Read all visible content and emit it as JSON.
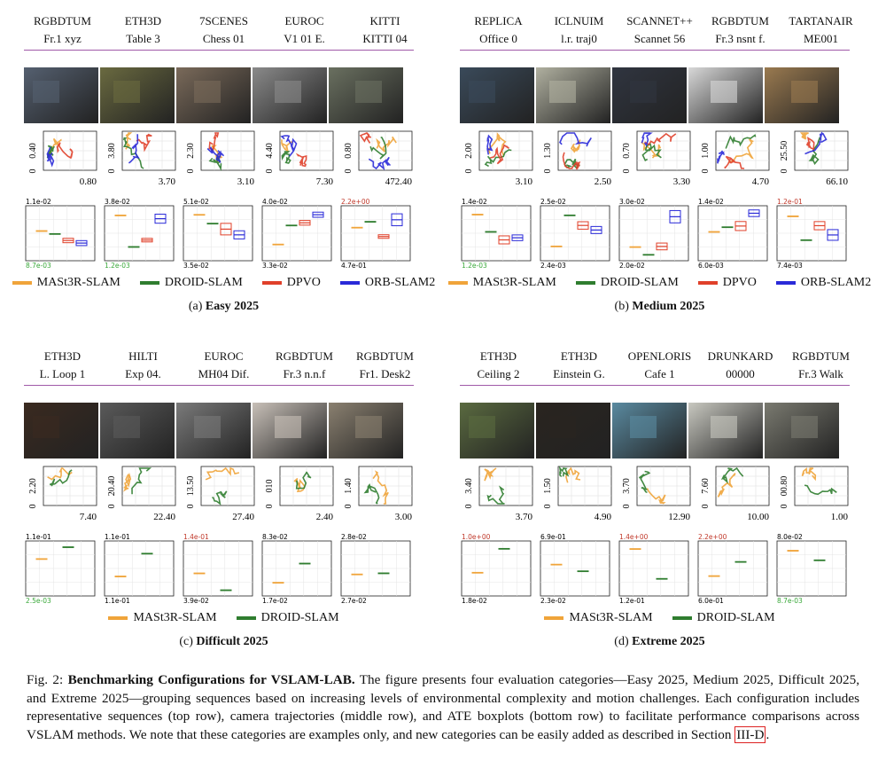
{
  "panels": [
    {
      "id": "a",
      "datasets": [
        "RGBDTUM",
        "ETH3D",
        "7SCENES",
        "EUROC",
        "KITTI"
      ],
      "sequences": [
        "Fr.1 xyz",
        "Table 3",
        "Chess 01",
        "V1 01 E.",
        "KITTI 04"
      ],
      "ymax": [
        "0.40",
        "3.80",
        "2.30",
        "4.40",
        "0.80"
      ],
      "xmax": [
        "0.80",
        "3.70",
        "3.10",
        "7.30",
        "472.40"
      ],
      "box_top": [
        "1.1e-02",
        "3.8e-02",
        "5.1e-02",
        "4.0e-02",
        "2.2e+00"
      ],
      "box_bottom": [
        "8.7e-03",
        "1.2e-03",
        "3.5e-02",
        "3.3e-02",
        "4.7e-01"
      ],
      "legend": [
        "MASt3R-SLAM",
        "DROID-SLAM",
        "DPVO",
        "ORB-SLAM2"
      ],
      "label_prefix": "(a)",
      "label_title": "Easy 2025",
      "thumb_colors": [
        "#556070",
        "#6a6a40",
        "#7a6a5a",
        "#8a8a8a",
        "#6a7060"
      ]
    },
    {
      "id": "b",
      "datasets": [
        "REPLICA",
        "ICLNUIM",
        "SCANNET++",
        "RGBDTUM",
        "TARTANAIR"
      ],
      "sequences": [
        "Office 0",
        "l.r. traj0",
        "Scannet 56",
        "Fr.3 nsnt f.",
        "ME001"
      ],
      "ymax": [
        "2.00",
        "1.30",
        "0.70",
        "1.00",
        "25.50"
      ],
      "xmax": [
        "3.10",
        "2.50",
        "3.30",
        "4.70",
        "66.10"
      ],
      "box_top": [
        "1.4e-02",
        "2.5e-02",
        "3.0e-02",
        "1.4e-02",
        "1.2e-01"
      ],
      "box_bottom": [
        "1.2e-03",
        "2.4e-03",
        "2.0e-02",
        "6.0e-03",
        "7.4e-03"
      ],
      "legend": [
        "MASt3R-SLAM",
        "DROID-SLAM",
        "DPVO",
        "ORB-SLAM2"
      ],
      "label_prefix": "(b)",
      "label_title": "Medium 2025",
      "thumb_colors": [
        "#3a4a5a",
        "#b0b0a0",
        "#303540",
        "#d8d8d8",
        "#9a7a50"
      ]
    },
    {
      "id": "c",
      "datasets": [
        "ETH3D",
        "HILTI",
        "EUROC",
        "RGBDTUM",
        "RGBDTUM"
      ],
      "sequences": [
        "L. Loop 1",
        "Exp 04.",
        "MH04 Dif.",
        "Fr.3 n.n.f",
        "Fr1. Desk2"
      ],
      "ymax": [
        "2.20",
        "20.40",
        "13.50",
        "010",
        "1.40"
      ],
      "xmax": [
        "7.40",
        "22.40",
        "27.40",
        "2.40",
        "3.00"
      ],
      "box_top": [
        "1.1e-01",
        "1.1e-01",
        "1.4e-01",
        "8.3e-02",
        "2.8e-02"
      ],
      "box_bottom": [
        "2.5e-03",
        "1.1e-01",
        "3.9e-02",
        "1.7e-02",
        "2.7e-02"
      ],
      "legend": [
        "MASt3R-SLAM",
        "DROID-SLAM"
      ],
      "label_prefix": "(c)",
      "label_title": "Difficult 2025",
      "thumb_colors": [
        "#3a2a20",
        "#5a5a5a",
        "#7a7a7a",
        "#c8c0b8",
        "#8a8070"
      ]
    },
    {
      "id": "d",
      "datasets": [
        "ETH3D",
        "ETH3D",
        "OPENLORIS",
        "DRUNKARD",
        "RGBDTUM"
      ],
      "sequences": [
        "Ceiling 2",
        "Einstein G.",
        "Cafe 1",
        "00000",
        "Fr.3 Walk"
      ],
      "ymax": [
        "3.40",
        "1.50",
        "3.70",
        "7.60",
        "00.80"
      ],
      "xmax": [
        "3.70",
        "4.90",
        "12.90",
        "10.00",
        "1.00"
      ],
      "box_top": [
        "1.0e+00",
        "6.9e-01",
        "1.4e+00",
        "2.2e+00",
        "8.0e-02"
      ],
      "box_bottom": [
        "1.8e-02",
        "2.3e-02",
        "1.2e-01",
        "6.0e-01",
        "8.7e-03"
      ],
      "legend": [
        "MASt3R-SLAM",
        "DROID-SLAM"
      ],
      "label_prefix": "(d)",
      "label_title": "Extreme 2025",
      "thumb_colors": [
        "#5a6a40",
        "#2a2520",
        "#5a8aa0",
        "#c8c8c0",
        "#7a7a70"
      ]
    }
  ],
  "colors": {
    "mast3r": "#f0a43a",
    "droid": "#2f7d2f",
    "dpvo": "#e0402a",
    "orb": "#2a2ad8",
    "rule": "#a05aa8",
    "red_label": "#c0392b",
    "green_label": "#3aa83a"
  },
  "caption": {
    "prefix": "Fig. 2: ",
    "title": "Benchmarking Configurations for VSLAM-LAB.",
    "body": " The figure presents four evaluation categories—Easy 2025, Medium 2025, Difficult 2025, and Extreme 2025—grouping sequences based on increasing levels of environmental complexity and motion challenges. Each configuration includes representative sequences (top row), camera trajectories (middle row), and ATE boxplots (bottom row) to facilitate performance comparisons across VSLAM methods. We note that these categories are examples only, and new categories can be easily added as described in Section ",
    "ref": "III-D",
    "end": "."
  }
}
